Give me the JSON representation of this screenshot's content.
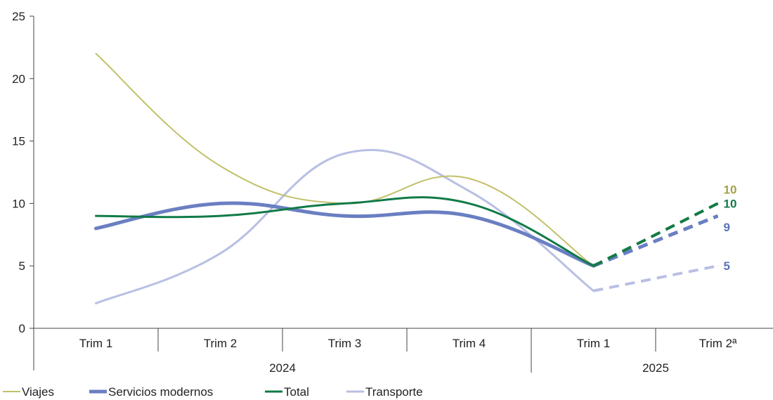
{
  "chart_data": {
    "type": "line",
    "title": "",
    "xlabel": "",
    "ylabel": "",
    "ylim": [
      0,
      25
    ],
    "yticks": [
      0,
      5,
      10,
      15,
      20,
      25
    ],
    "grid": false,
    "legend_position": "bottom-left",
    "categories": [
      "Trim 1",
      "Trim 2",
      "Trim 3",
      "Trim 4",
      "Trim 1",
      "Trim 2ª"
    ],
    "year_groups": [
      {
        "label": "2024",
        "span": [
          0,
          3
        ]
      },
      {
        "label": "2025",
        "span": [
          4,
          5
        ]
      }
    ],
    "projected_from_index": 4,
    "series": [
      {
        "name": "Viajes",
        "color": "#c2c06a",
        "width": 2,
        "values": [
          22,
          13,
          10,
          12,
          5,
          10
        ],
        "end_label": "10"
      },
      {
        "name": "Servicios modernos",
        "color": "#6a7fc2",
        "width": 5,
        "values": [
          8,
          10,
          9,
          9,
          5,
          9
        ],
        "end_label": "9"
      },
      {
        "name": "Total",
        "color": "#117a47",
        "width": 3,
        "values": [
          9,
          9,
          10,
          10,
          5,
          10
        ],
        "end_label": "10"
      },
      {
        "name": "Transporte",
        "color": "#b9bfe3",
        "width": 3,
        "values": [
          2,
          6,
          14,
          11,
          3,
          5
        ],
        "end_label": "5"
      }
    ]
  }
}
